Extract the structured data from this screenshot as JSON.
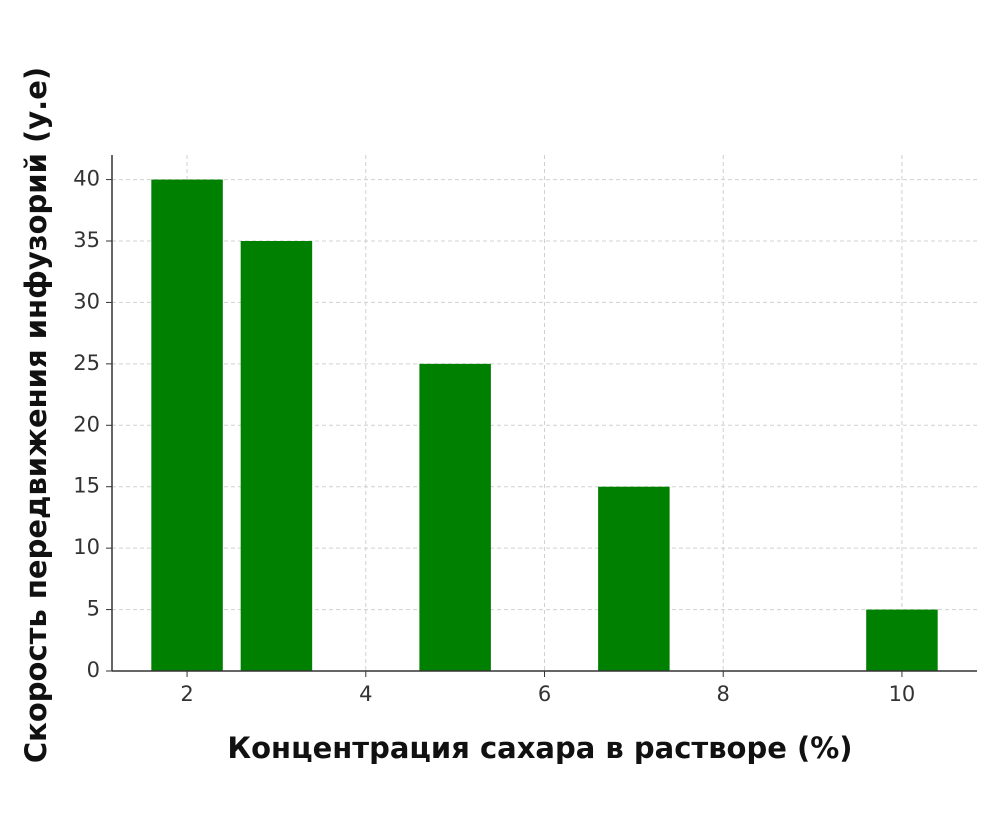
{
  "chart_data": {
    "type": "bar",
    "x_label": "Концентрация сахара в растворе (%)",
    "y_label": "Скорость передвижения инфузорий (у.е)",
    "x": [
      2,
      3,
      5,
      7,
      10
    ],
    "values": [
      40,
      35,
      25,
      15,
      5
    ],
    "color": "#008000",
    "xlim": [
      1.16,
      10.84
    ],
    "xticks": [
      2,
      4,
      6,
      8,
      10
    ],
    "ylim": [
      0,
      42
    ],
    "yticks": [
      0,
      5,
      10,
      15,
      20,
      25,
      30,
      35,
      40
    ],
    "grid": true
  }
}
